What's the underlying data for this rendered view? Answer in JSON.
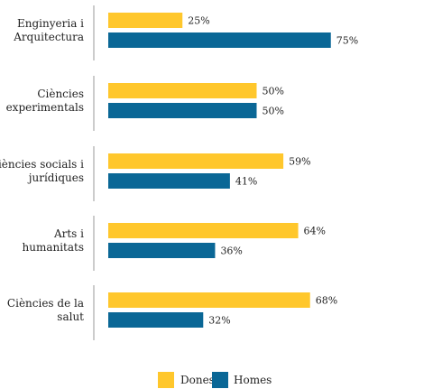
{
  "chart_data": {
    "type": "bar",
    "orientation": "horizontal",
    "categories": [
      [
        "Enginyeria i",
        "Arquitectura"
      ],
      [
        "Ciències",
        "experimentals"
      ],
      [
        "Ciències socials i",
        "jurídiques"
      ],
      [
        "Arts i",
        "humanitats"
      ],
      [
        "Ciències de la",
        "salut"
      ]
    ],
    "series": [
      {
        "name": "Dones",
        "color": "#FFC72C",
        "values": [
          25,
          50,
          59,
          64,
          68
        ],
        "labels": [
          "25%",
          "50%",
          "59%",
          "64%",
          "68%"
        ]
      },
      {
        "name": "Homes",
        "color": "#0A6796",
        "values": [
          75,
          50,
          41,
          36,
          32
        ],
        "labels": [
          "75%",
          "50%",
          "41%",
          "36%",
          "32%"
        ]
      }
    ],
    "xlim": [
      0,
      100
    ],
    "grid": false,
    "legend_position": "bottom-center"
  }
}
